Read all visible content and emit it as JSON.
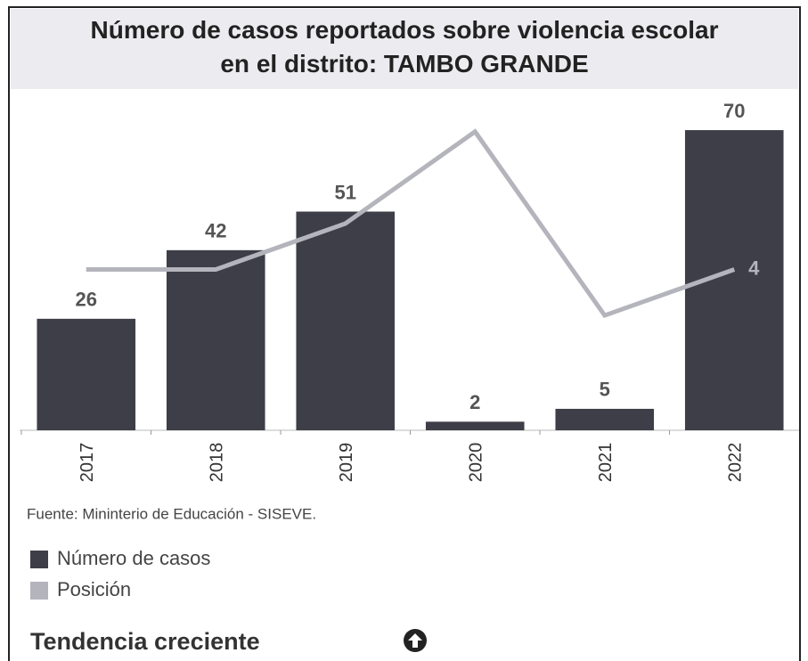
{
  "chart_data": {
    "type": "bar_line",
    "title": "Número de casos reportados sobre violencia escolar en el distrito: TAMBO GRANDE",
    "categories": [
      "2017",
      "2018",
      "2019",
      "2020",
      "2021",
      "2022"
    ],
    "series": [
      {
        "name": "Número de casos",
        "type": "bar",
        "color": "#3e3e48",
        "values": [
          26,
          42,
          51,
          2,
          5,
          70
        ]
      },
      {
        "name": "Posición",
        "type": "line",
        "axis": "y2",
        "color": "#b4b4bc",
        "values": [
          4,
          4,
          3,
          1,
          5,
          4
        ],
        "value_labels": [
          null,
          null,
          null,
          null,
          null,
          "4"
        ]
      }
    ],
    "ylim": [
      0,
      75
    ],
    "y2lim": [
      0.5,
      7.5
    ],
    "y2_inverted": true,
    "source": "Fuente: Mininterio de Educación - SISEVE.",
    "trend": "Tendencia creciente"
  }
}
